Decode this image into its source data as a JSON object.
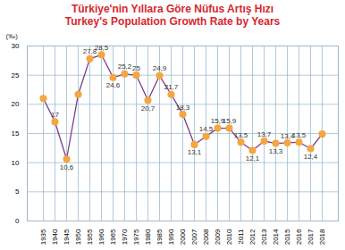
{
  "chart_data": {
    "type": "line",
    "title": "Türkiye'nin Yıllara Göre Nüfus Artış Hızı",
    "subtitle": "Turkey's Population Growth Rate by Years",
    "y_label": "(‰)",
    "categories": [
      "1935",
      "1940",
      "1945",
      "1950",
      "1955",
      "1960",
      "1965",
      "1970",
      "1975",
      "1980",
      "1985",
      "1990",
      "2000",
      "2007",
      "2008",
      "2009",
      "2010",
      "2011",
      "2012",
      "2013",
      "2014",
      "2015",
      "2016",
      "2017",
      "2018"
    ],
    "values": [
      21,
      17,
      10.6,
      21.7,
      27.8,
      28.5,
      24.6,
      25.2,
      25,
      20.7,
      24.9,
      21.7,
      18.3,
      13.1,
      14.5,
      15.9,
      15.9,
      13.5,
      12.1,
      13.7,
      13.3,
      13.4,
      13.5,
      12.4,
      14.9
    ],
    "value_labels": [
      null,
      "17",
      "10,6",
      null,
      "27,8",
      "28,5",
      "24,6",
      "25,2",
      "25",
      "20,7",
      "24,9",
      "21,7",
      "18,3",
      "13,1",
      "14,5",
      "15,9",
      "15,9",
      "13,5",
      "12,1",
      "13,7",
      "13,3",
      "13,4",
      "13,5",
      "12,4",
      null
    ],
    "data_labels": true,
    "color": "#7a3b8f",
    "marker": "circle",
    "ylim": [
      0,
      30
    ],
    "yticks": [
      0,
      5,
      10,
      15,
      20,
      25,
      30
    ],
    "grid": true
  }
}
